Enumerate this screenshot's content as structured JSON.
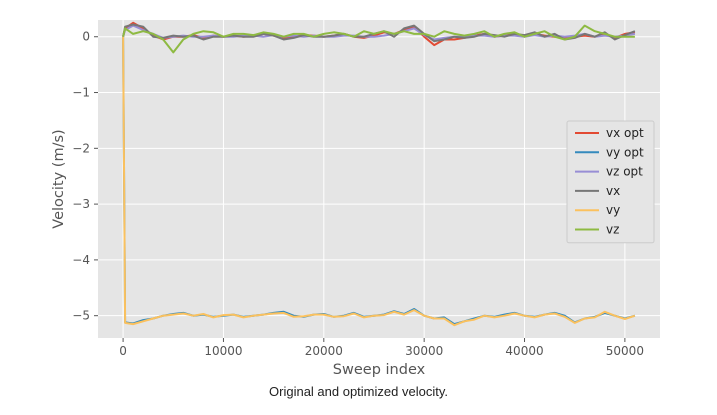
{
  "caption": "Original and optimized velocity.",
  "chart_data": {
    "type": "line",
    "xlabel": "Sweep index",
    "ylabel": "Velocity (m/s)",
    "xlim": [
      -2500,
      53500
    ],
    "ylim": [
      -5.4,
      0.3
    ],
    "xticks": [
      0,
      10000,
      20000,
      30000,
      40000,
      50000
    ],
    "yticks": [
      0,
      -1,
      -2,
      -3,
      -4,
      -5
    ],
    "grid": true,
    "style": "ggplot",
    "legend_position": "center-right",
    "x": [
      0,
      200,
      1000,
      2000,
      3000,
      4000,
      5000,
      6000,
      7000,
      8000,
      9000,
      10000,
      11000,
      12000,
      13000,
      14000,
      15000,
      16000,
      17000,
      18000,
      19000,
      20000,
      21000,
      22000,
      23000,
      24000,
      25000,
      26000,
      27000,
      28000,
      29000,
      30000,
      31000,
      32000,
      33000,
      34000,
      35000,
      36000,
      37000,
      38000,
      39000,
      40000,
      41000,
      42000,
      43000,
      44000,
      45000,
      46000,
      47000,
      48000,
      49000,
      50000,
      51000
    ],
    "series": [
      {
        "name": "vx opt",
        "color": "#E24A33",
        "values": [
          0,
          0.15,
          0.25,
          0.15,
          0.02,
          -0.05,
          0.0,
          0.0,
          0.03,
          -0.02,
          0.02,
          0.0,
          0.02,
          0.0,
          0.02,
          0.05,
          0.02,
          -0.02,
          0.0,
          0.03,
          0.02,
          0.0,
          0.02,
          0.05,
          0.0,
          -0.02,
          0.02,
          0.08,
          0.05,
          0.12,
          0.18,
          0.0,
          -0.15,
          -0.05,
          -0.05,
          -0.02,
          0.02,
          0.05,
          0.0,
          0.02,
          0.05,
          0.0,
          0.05,
          0.02,
          0.0,
          -0.02,
          0.0,
          0.02,
          0.0,
          0.05,
          -0.02,
          0.05,
          0.08
        ]
      },
      {
        "name": "vy opt",
        "color": "#348ABD",
        "values": [
          0,
          -5.12,
          -5.14,
          -5.08,
          -5.05,
          -5.0,
          -4.97,
          -4.95,
          -5.0,
          -4.98,
          -5.02,
          -5.0,
          -4.98,
          -5.02,
          -5.0,
          -4.98,
          -4.95,
          -4.93,
          -5.0,
          -5.02,
          -4.98,
          -4.97,
          -5.02,
          -5.0,
          -4.95,
          -5.02,
          -5.0,
          -4.98,
          -4.92,
          -4.97,
          -4.88,
          -5.0,
          -5.05,
          -5.03,
          -5.15,
          -5.1,
          -5.05,
          -5.0,
          -5.02,
          -4.98,
          -4.95,
          -5.0,
          -5.02,
          -4.98,
          -4.95,
          -5.0,
          -5.12,
          -5.05,
          -5.02,
          -4.95,
          -5.0,
          -5.05,
          -5.0
        ]
      },
      {
        "name": "vz opt",
        "color": "#988ED5",
        "values": [
          0,
          0.12,
          0.2,
          0.12,
          0.05,
          -0.02,
          0.0,
          0.02,
          0.0,
          0.0,
          0.02,
          0.0,
          0.0,
          0.02,
          0.02,
          0.0,
          0.03,
          0.0,
          0.02,
          0.0,
          0.02,
          0.0,
          0.0,
          0.02,
          0.02,
          0.0,
          0.0,
          0.02,
          0.05,
          0.1,
          0.15,
          0.03,
          -0.05,
          -0.02,
          0.0,
          0.0,
          0.02,
          0.02,
          0.0,
          0.02,
          0.02,
          0.0,
          0.03,
          0.0,
          0.02,
          0.0,
          0.02,
          0.05,
          0.0,
          0.02,
          0.0,
          0.02,
          0.05
        ]
      },
      {
        "name": "vx",
        "color": "#777777",
        "values": [
          0,
          0.18,
          0.22,
          0.18,
          0.0,
          -0.02,
          0.02,
          0.0,
          0.02,
          -0.05,
          0.0,
          0.0,
          0.02,
          0.0,
          0.0,
          0.05,
          0.02,
          -0.05,
          -0.02,
          0.03,
          0.0,
          0.0,
          0.02,
          0.05,
          0.0,
          0.0,
          0.05,
          0.1,
          0.0,
          0.15,
          0.2,
          0.05,
          -0.08,
          -0.05,
          0.0,
          -0.02,
          0.0,
          0.05,
          0.03,
          0.0,
          0.05,
          0.03,
          0.08,
          0.0,
          0.05,
          -0.05,
          -0.02,
          0.05,
          0.0,
          0.08,
          -0.05,
          0.03,
          0.1
        ]
      },
      {
        "name": "vy",
        "color": "#FBC15E",
        "values": [
          0,
          -5.13,
          -5.15,
          -5.1,
          -5.05,
          -5.0,
          -4.98,
          -4.96,
          -5.0,
          -4.97,
          -5.03,
          -4.99,
          -4.98,
          -5.03,
          -5.0,
          -4.98,
          -4.96,
          -4.95,
          -5.02,
          -5.01,
          -4.98,
          -4.98,
          -5.02,
          -5.01,
          -4.96,
          -5.03,
          -5.0,
          -4.99,
          -4.93,
          -4.98,
          -4.9,
          -5.0,
          -5.05,
          -5.05,
          -5.17,
          -5.1,
          -5.07,
          -5.0,
          -5.03,
          -5.0,
          -4.96,
          -5.0,
          -5.03,
          -4.98,
          -4.96,
          -5.02,
          -5.13,
          -5.05,
          -5.03,
          -4.93,
          -5.0,
          -5.06,
          -5.0
        ]
      },
      {
        "name": "vz",
        "color": "#8EBA42",
        "values": [
          0,
          0.15,
          0.05,
          0.1,
          0.05,
          -0.05,
          -0.28,
          -0.05,
          0.05,
          0.1,
          0.08,
          0.0,
          0.05,
          0.05,
          0.03,
          0.08,
          0.05,
          0.0,
          0.05,
          0.05,
          0.0,
          0.05,
          0.08,
          0.05,
          0.0,
          0.1,
          0.05,
          0.1,
          0.05,
          0.1,
          0.05,
          0.05,
          0.0,
          0.1,
          0.05,
          0.02,
          0.05,
          0.1,
          0.0,
          0.05,
          0.08,
          0.0,
          0.05,
          0.1,
          0.0,
          -0.05,
          0.0,
          0.2,
          0.1,
          0.05,
          0.0,
          0.0,
          0.0
        ]
      }
    ]
  }
}
